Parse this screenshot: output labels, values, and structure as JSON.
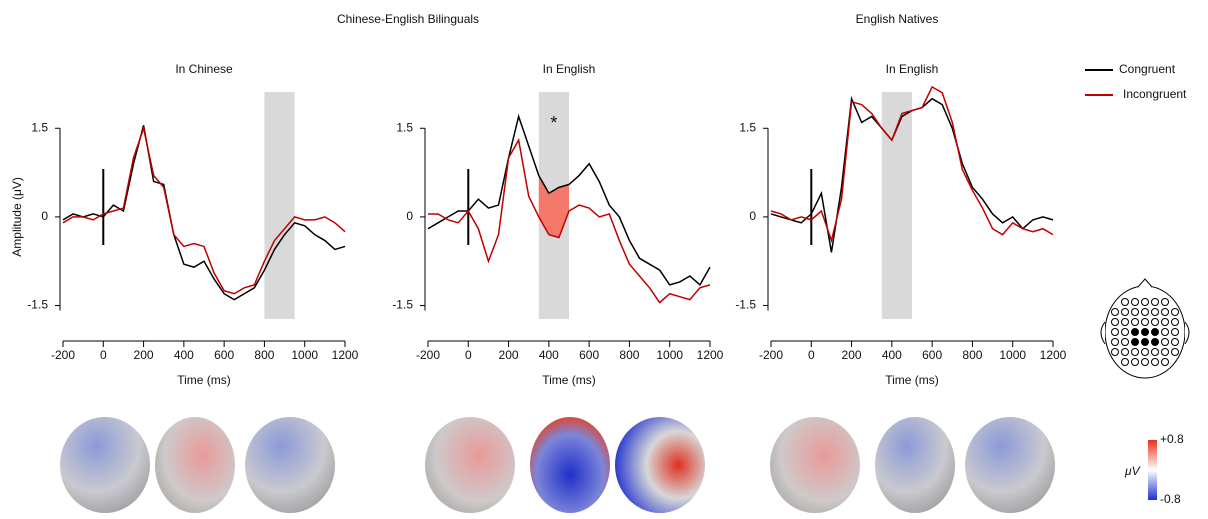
{
  "figure": {
    "group_titles": [
      "Chinese-English Bilinguals",
      "English Natives"
    ],
    "colorbar": {
      "label": "μV",
      "lim": [
        -0.8,
        0.8
      ],
      "ticks": [
        {
          "value": 0.8,
          "label": "+0.8"
        },
        {
          "value": -0.8,
          "label": "-0.8"
        }
      ]
    }
  },
  "chart_data": [
    {
      "type": "line",
      "title": "In Chinese",
      "xlabel": "Time (ms)",
      "ylabel": "Amplitude (μV)",
      "x": [
        -200,
        -150,
        -100,
        -50,
        0,
        50,
        100,
        150,
        200,
        250,
        300,
        350,
        400,
        450,
        500,
        550,
        600,
        650,
        700,
        750,
        800,
        850,
        900,
        950,
        1000,
        1050,
        1100,
        1150,
        1200
      ],
      "series": [
        {
          "name": "Congruent",
          "color": "#000000",
          "values": [
            -0.05,
            0.05,
            0.0,
            0.05,
            0.0,
            0.2,
            0.1,
            0.9,
            1.55,
            0.6,
            0.55,
            -0.3,
            -0.8,
            -0.85,
            -0.75,
            -1.05,
            -1.3,
            -1.4,
            -1.3,
            -1.2,
            -0.9,
            -0.55,
            -0.3,
            -0.1,
            -0.15,
            -0.3,
            -0.4,
            -0.55,
            -0.5
          ]
        },
        {
          "name": "Incongruent",
          "color": "#c00000",
          "values": [
            -0.1,
            0.0,
            0.0,
            -0.05,
            0.05,
            0.1,
            0.15,
            1.0,
            1.5,
            0.7,
            0.5,
            -0.3,
            -0.5,
            -0.45,
            -0.5,
            -0.95,
            -1.25,
            -1.3,
            -1.2,
            -1.15,
            -0.75,
            -0.4,
            -0.2,
            0.0,
            -0.05,
            -0.05,
            0.0,
            -0.1,
            -0.25
          ]
        }
      ],
      "xlim": [
        -200,
        1200
      ],
      "xticks": [
        -200,
        0,
        200,
        400,
        600,
        800,
        1000,
        1200
      ],
      "ylim": [
        -2.1,
        2.3
      ],
      "yticks": [
        -1.5,
        0,
        1.5
      ],
      "onset": 0,
      "highlight": [
        800,
        950
      ]
    },
    {
      "type": "line",
      "title": "In English",
      "xlabel": "Time (ms)",
      "annotation": "*",
      "x": [
        -200,
        -150,
        -100,
        -50,
        0,
        50,
        100,
        150,
        200,
        250,
        300,
        350,
        400,
        450,
        500,
        550,
        600,
        650,
        700,
        750,
        800,
        850,
        900,
        950,
        1000,
        1050,
        1100,
        1150,
        1200
      ],
      "series": [
        {
          "name": "Congruent",
          "color": "#000000",
          "values": [
            -0.2,
            -0.1,
            0.0,
            0.1,
            0.1,
            0.3,
            0.15,
            0.2,
            1.0,
            1.7,
            1.2,
            0.7,
            0.4,
            0.5,
            0.55,
            0.7,
            0.9,
            0.6,
            0.2,
            0.0,
            -0.4,
            -0.7,
            -0.8,
            -0.9,
            -1.15,
            -1.1,
            -1.0,
            -1.15,
            -0.85
          ]
        },
        {
          "name": "Incongruent",
          "color": "#c00000",
          "values": [
            0.05,
            0.05,
            -0.05,
            -0.1,
            0.1,
            -0.2,
            -0.75,
            -0.3,
            1.0,
            1.3,
            0.35,
            0.0,
            -0.3,
            -0.35,
            0.1,
            0.2,
            0.15,
            0.0,
            0.05,
            -0.4,
            -0.8,
            -1.0,
            -1.2,
            -1.45,
            -1.3,
            -1.35,
            -1.4,
            -1.2,
            -1.15
          ]
        }
      ],
      "xlim": [
        -200,
        1200
      ],
      "xticks": [
        -200,
        0,
        200,
        400,
        600,
        800,
        1000,
        1200
      ],
      "ylim": [
        -2.1,
        2.3
      ],
      "yticks": [
        -1.5,
        0,
        1.5
      ],
      "onset": 0,
      "highlight": [
        350,
        500
      ],
      "fill_color": "#f4796b"
    },
    {
      "type": "line",
      "title": "In English",
      "xlabel": "Time (ms)",
      "x": [
        -200,
        -150,
        -100,
        -50,
        0,
        50,
        100,
        150,
        200,
        250,
        300,
        350,
        400,
        450,
        500,
        550,
        600,
        650,
        700,
        750,
        800,
        850,
        900,
        950,
        1000,
        1050,
        1100,
        1150,
        1200
      ],
      "series": [
        {
          "name": "Congruent",
          "color": "#000000",
          "values": [
            0.05,
            0.0,
            -0.05,
            -0.1,
            0.05,
            0.4,
            -0.6,
            0.5,
            2.0,
            1.6,
            1.7,
            1.5,
            1.3,
            1.7,
            1.8,
            1.85,
            2.0,
            1.9,
            1.5,
            0.9,
            0.5,
            0.3,
            0.05,
            -0.1,
            0.0,
            -0.2,
            -0.05,
            0.0,
            -0.05
          ]
        },
        {
          "name": "Incongruent",
          "color": "#c00000",
          "values": [
            0.1,
            0.05,
            -0.05,
            0.0,
            -0.05,
            0.1,
            -0.4,
            0.3,
            1.95,
            1.9,
            1.75,
            1.5,
            1.3,
            1.75,
            1.8,
            1.85,
            2.2,
            2.1,
            1.6,
            0.8,
            0.45,
            0.15,
            -0.2,
            -0.3,
            -0.1,
            -0.2,
            -0.25,
            -0.2,
            -0.3
          ]
        }
      ],
      "xlim": [
        -200,
        1200
      ],
      "xticks": [
        -200,
        0,
        200,
        400,
        600,
        800,
        1000,
        1200
      ],
      "ylim": [
        -2.1,
        2.3
      ],
      "yticks": [
        -1.5,
        0,
        1.5
      ],
      "onset": 0,
      "highlight": [
        350,
        500
      ],
      "legend": "top-right"
    }
  ]
}
